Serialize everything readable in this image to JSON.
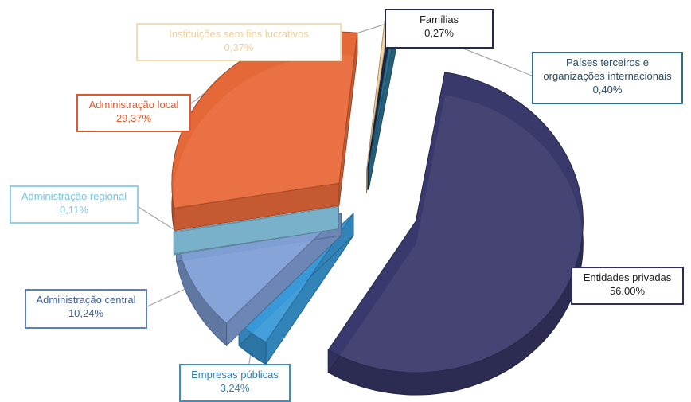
{
  "chart_data": {
    "type": "pie",
    "style": "3d-exploded",
    "title": "",
    "legend": "none (callout labels)",
    "slices": [
      {
        "label": "Entidades privadas",
        "value": 56.0,
        "value_label": "56,00%",
        "color": "#3b3a6e",
        "border": "#2e2c63"
      },
      {
        "label": "Empresas públicas",
        "value": 3.24,
        "value_label": "3,24%",
        "color": "#3a9ad9",
        "border": "#3a8fc9"
      },
      {
        "label": "Administração central",
        "value": 10.24,
        "value_label": "10,24%",
        "color": "#7f9fd6",
        "border": "#5b7fbf"
      },
      {
        "label": "Administração regional",
        "value": 0.11,
        "value_label": "0,11%",
        "color": "#8fd0ee",
        "border": "#8fd0ee"
      },
      {
        "label": "Administração local",
        "value": 29.37,
        "value_label": "29,37%",
        "color": "#e8693a",
        "border": "#e2572b"
      },
      {
        "label": "Instituições sem fins lucrativos",
        "value": 0.37,
        "value_label": "0,37%",
        "color": "#f7d6a6",
        "border": "#f5dcb3"
      },
      {
        "label": "Famílias",
        "value": 0.27,
        "value_label": "0,27%",
        "color": "#1f2a4d",
        "border": "#1f2a4d"
      },
      {
        "label": "Países terceiros e organizações internacionais",
        "label_lines": [
          "Países terceiros e",
          "organizações internacionais"
        ],
        "value": 0.4,
        "value_label": "0,40%",
        "color": "#2d6f8f",
        "border": "#2d6f8f"
      }
    ]
  }
}
